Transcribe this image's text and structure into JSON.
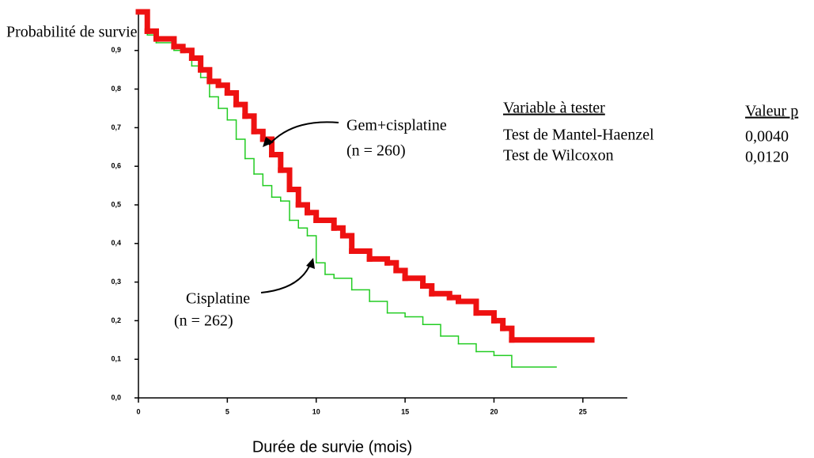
{
  "chart_data": {
    "type": "step",
    "y_label": "Probabilité de survie",
    "x_label": "Durée de survie (mois)",
    "xlim": [
      0,
      27.5
    ],
    "ylim": [
      0,
      1
    ],
    "xticks": [
      0,
      5,
      10,
      15,
      20,
      25
    ],
    "yticks": [
      {
        "value": 0,
        "label": "0,0"
      },
      {
        "value": 0.1,
        "label": "0,1"
      },
      {
        "value": 0.2,
        "label": "0,2"
      },
      {
        "value": 0.3,
        "label": "0,3"
      },
      {
        "value": 0.4,
        "label": "0,4"
      },
      {
        "value": 0.5,
        "label": "0,5"
      },
      {
        "value": 0.6,
        "label": "0,6"
      },
      {
        "value": 0.7,
        "label": "0,7"
      },
      {
        "value": 0.8,
        "label": "0,8"
      },
      {
        "value": 0.9,
        "label": "0,9"
      }
    ],
    "series": [
      {
        "name": "Gem+cisplatine",
        "n_label": "(n = 260)",
        "color": "#ee1111",
        "width": 7,
        "x": [
          0,
          0.5,
          1,
          2,
          2.5,
          3,
          3.5,
          4,
          4.5,
          5,
          5.5,
          6,
          6.5,
          7,
          7.5,
          8,
          8.5,
          9,
          9.5,
          10,
          11,
          11.5,
          12,
          13,
          14,
          14.5,
          15,
          16,
          16.5,
          17.5,
          18,
          19,
          20,
          20.5,
          21,
          25.5
        ],
        "values": [
          1.0,
          0.95,
          0.93,
          0.91,
          0.9,
          0.88,
          0.85,
          0.82,
          0.81,
          0.79,
          0.76,
          0.73,
          0.69,
          0.67,
          0.63,
          0.59,
          0.54,
          0.5,
          0.48,
          0.46,
          0.44,
          0.42,
          0.38,
          0.36,
          0.35,
          0.33,
          0.31,
          0.29,
          0.27,
          0.26,
          0.25,
          0.22,
          0.2,
          0.18,
          0.15,
          0.15
        ]
      },
      {
        "name": "Cisplatine",
        "n_label": "(n = 262)",
        "color": "#22cc22",
        "width": 1.5,
        "x": [
          0,
          0.5,
          1,
          2,
          3,
          3.5,
          4,
          4.5,
          5,
          5.5,
          6,
          6.5,
          7,
          7.5,
          8,
          8.5,
          9,
          9.5,
          10,
          10.5,
          11,
          12,
          13,
          14,
          15,
          16,
          17,
          18,
          19,
          20,
          21,
          23.5
        ],
        "values": [
          1.0,
          0.94,
          0.92,
          0.9,
          0.86,
          0.83,
          0.78,
          0.75,
          0.72,
          0.67,
          0.62,
          0.58,
          0.55,
          0.52,
          0.51,
          0.46,
          0.44,
          0.42,
          0.35,
          0.32,
          0.31,
          0.28,
          0.25,
          0.22,
          0.21,
          0.19,
          0.16,
          0.14,
          0.12,
          0.11,
          0.08,
          0.08
        ]
      }
    ],
    "table": {
      "header": [
        "Variable à tester",
        "Valeur p"
      ],
      "rows": [
        [
          "Test de Mantel-Haenzel",
          "0,0040"
        ],
        [
          "Test de Wilcoxon",
          "0,0120"
        ]
      ]
    }
  }
}
